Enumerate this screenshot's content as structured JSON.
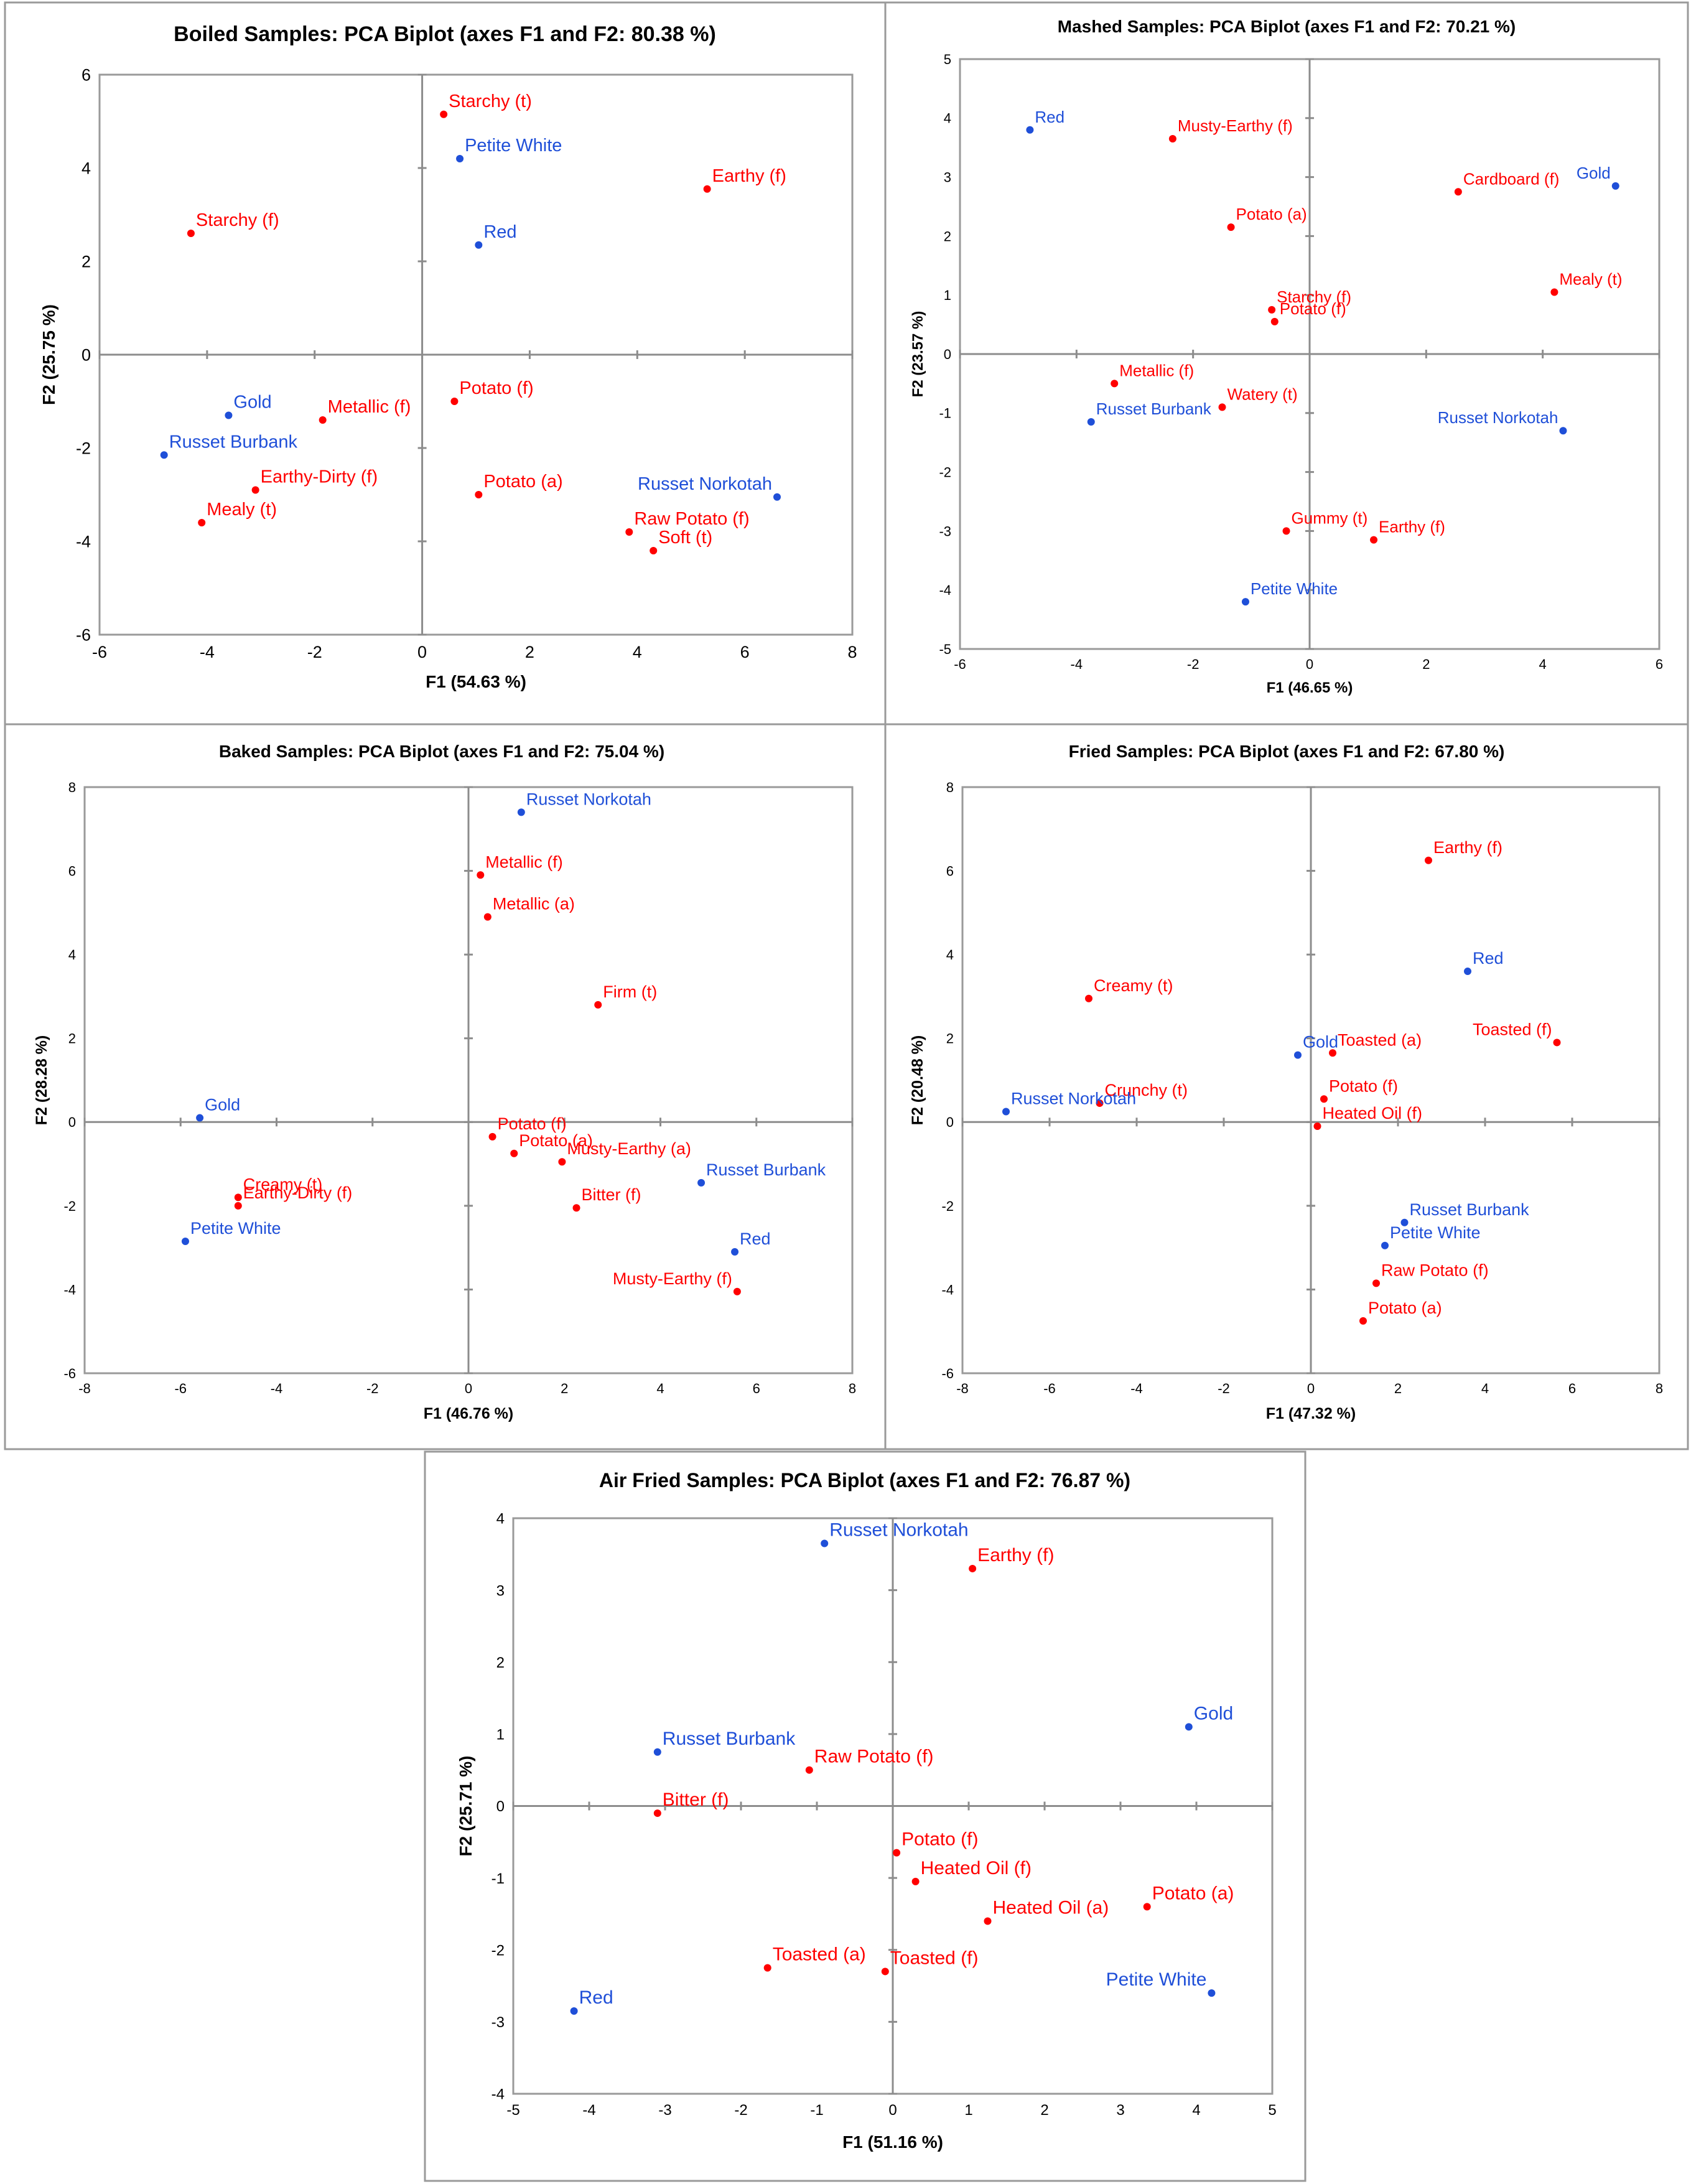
{
  "colors": {
    "attribute": "#ff0000",
    "sample": "#1f4fd8",
    "axis": "#8c8c8c"
  },
  "chart_data": [
    {
      "type": "scatter",
      "title": "Boiled Samples: PCA Biplot (axes F1 and F2: 80.38 %)",
      "xlabel": "F1 (54.63 %)",
      "ylabel": "F2 (25.75 %)",
      "xlim": [
        -6,
        8
      ],
      "ylim": [
        -6,
        6
      ],
      "xticks": [
        -6,
        -4,
        -2,
        0,
        2,
        4,
        6,
        8
      ],
      "yticks": [
        -6,
        -4,
        -2,
        0,
        2,
        4,
        6
      ],
      "series": [
        {
          "name": "attributes",
          "color": "#ff0000",
          "points": [
            {
              "label": "Starchy (t)",
              "x": 0.4,
              "y": 5.15
            },
            {
              "label": "Earthy (f)",
              "x": 5.3,
              "y": 3.55
            },
            {
              "label": "Starchy (f)",
              "x": -4.3,
              "y": 2.6
            },
            {
              "label": "Metallic (f)",
              "x": -1.85,
              "y": -1.4
            },
            {
              "label": "Potato (f)",
              "x": 0.6,
              "y": -1.0
            },
            {
              "label": "Earthy-Dirty (f)",
              "x": -3.1,
              "y": -2.9
            },
            {
              "label": "Mealy (t)",
              "x": -4.1,
              "y": -3.6
            },
            {
              "label": "Potato (a)",
              "x": 1.05,
              "y": -3.0
            },
            {
              "label": "Raw Potato (f)",
              "x": 3.85,
              "y": -3.8
            },
            {
              "label": "Soft (t)",
              "x": 4.3,
              "y": -4.2
            }
          ]
        },
        {
          "name": "samples",
          "color": "#1f4fd8",
          "points": [
            {
              "label": "Petite White",
              "x": 0.7,
              "y": 4.2
            },
            {
              "label": "Red",
              "x": 1.05,
              "y": 2.35
            },
            {
              "label": "Gold",
              "x": -3.6,
              "y": -1.3
            },
            {
              "label": "Russet Burbank",
              "x": -4.8,
              "y": -2.15
            },
            {
              "label": "Russet Norkotah",
              "x": 6.6,
              "y": -3.05
            }
          ]
        }
      ]
    },
    {
      "type": "scatter",
      "title": "Mashed Samples: PCA Biplot (axes F1 and F2: 70.21 %)",
      "xlabel": "F1 (46.65 %)",
      "ylabel": "F2 (23.57 %)",
      "xlim": [
        -6,
        6
      ],
      "ylim": [
        -5,
        5
      ],
      "xticks": [
        -6,
        -4,
        -2,
        0,
        2,
        4,
        6
      ],
      "yticks": [
        -5,
        -4,
        -3,
        -2,
        -1,
        0,
        1,
        2,
        3,
        4,
        5
      ],
      "series": [
        {
          "name": "attributes",
          "color": "#ff0000",
          "points": [
            {
              "label": "Musty-Earthy (f)",
              "x": -2.35,
              "y": 3.65
            },
            {
              "label": "Cardboard (f)",
              "x": 2.55,
              "y": 2.75
            },
            {
              "label": "Potato (a)",
              "x": -1.35,
              "y": 2.15
            },
            {
              "label": "Mealy (t)",
              "x": 4.2,
              "y": 1.05
            },
            {
              "label": "Starchy (f)",
              "x": -0.65,
              "y": 0.75
            },
            {
              "label": "Potato (f)",
              "x": -0.6,
              "y": 0.55
            },
            {
              "label": "Metallic (f)",
              "x": -3.35,
              "y": -0.5
            },
            {
              "label": "Watery (t)",
              "x": -1.5,
              "y": -0.9
            },
            {
              "label": "Gummy (t)",
              "x": -0.4,
              "y": -3.0
            },
            {
              "label": "Earthy (f)",
              "x": 1.1,
              "y": -3.15
            }
          ]
        },
        {
          "name": "samples",
          "color": "#1f4fd8",
          "points": [
            {
              "label": "Red",
              "x": -4.8,
              "y": 3.8
            },
            {
              "label": "Gold",
              "x": 5.25,
              "y": 2.85
            },
            {
              "label": "Russet Burbank",
              "x": -3.75,
              "y": -1.15
            },
            {
              "label": "Russet Norkotah",
              "x": 4.35,
              "y": -1.3
            },
            {
              "label": "Petite White",
              "x": -1.1,
              "y": -4.2
            }
          ]
        }
      ]
    },
    {
      "type": "scatter",
      "title": "Baked Samples: PCA Biplot (axes F1 and F2: 75.04 %)",
      "xlabel": "F1 (46.76 %)",
      "ylabel": "F2 (28.28 %)",
      "xlim": [
        -8,
        8
      ],
      "ylim": [
        -6,
        8
      ],
      "xticks": [
        -8,
        -6,
        -4,
        -2,
        0,
        2,
        4,
        6,
        8
      ],
      "yticks": [
        -6,
        -4,
        -2,
        0,
        2,
        4,
        6,
        8
      ],
      "series": [
        {
          "name": "attributes",
          "color": "#ff0000",
          "points": [
            {
              "label": "Metallic (f)",
              "x": 0.25,
              "y": 5.9
            },
            {
              "label": "Metallic (a)",
              "x": 0.4,
              "y": 4.9
            },
            {
              "label": "Firm (t)",
              "x": 2.7,
              "y": 2.8
            },
            {
              "label": "Potato (f)",
              "x": 0.5,
              "y": -0.35
            },
            {
              "label": "Potato (a)",
              "x": 0.95,
              "y": -0.75
            },
            {
              "label": "Musty-Earthy (a)",
              "x": 1.95,
              "y": -0.95
            },
            {
              "label": "Bitter (f)",
              "x": 2.25,
              "y": -2.05
            },
            {
              "label": "Creamy (t)",
              "x": -4.8,
              "y": -1.8
            },
            {
              "label": "Earthy-Dirty (f)",
              "x": -4.8,
              "y": -2.0
            },
            {
              "label": "Musty-Earthy (f)",
              "x": 5.6,
              "y": -4.05
            }
          ]
        },
        {
          "name": "samples",
          "color": "#1f4fd8",
          "points": [
            {
              "label": "Russet Norkotah",
              "x": 1.1,
              "y": 7.4
            },
            {
              "label": "Gold",
              "x": -5.6,
              "y": 0.1
            },
            {
              "label": "Russet Burbank",
              "x": 4.85,
              "y": -1.45
            },
            {
              "label": "Red",
              "x": 5.55,
              "y": -3.1
            },
            {
              "label": "Petite White",
              "x": -5.9,
              "y": -2.85
            }
          ]
        }
      ]
    },
    {
      "type": "scatter",
      "title": "Fried Samples: PCA Biplot (axes F1 and F2: 67.80 %)",
      "xlabel": "F1 (47.32 %)",
      "ylabel": "F2 (20.48 %)",
      "xlim": [
        -8,
        8
      ],
      "ylim": [
        -6,
        8
      ],
      "xticks": [
        -8,
        -6,
        -4,
        -2,
        0,
        2,
        4,
        6,
        8
      ],
      "yticks": [
        -6,
        -4,
        -2,
        0,
        2,
        4,
        6,
        8
      ],
      "series": [
        {
          "name": "attributes",
          "color": "#ff0000",
          "points": [
            {
              "label": "Earthy (f)",
              "x": 2.7,
              "y": 6.25
            },
            {
              "label": "Creamy (t)",
              "x": -5.1,
              "y": 2.95
            },
            {
              "label": "Toasted (f)",
              "x": 5.65,
              "y": 1.9
            },
            {
              "label": "Toasted (a)",
              "x": 0.5,
              "y": 1.65
            },
            {
              "label": "Potato (f)",
              "x": 0.3,
              "y": 0.55
            },
            {
              "label": "Crunchy (t)",
              "x": -4.85,
              "y": 0.45
            },
            {
              "label": "Heated Oil (f)",
              "x": 0.15,
              "y": -0.1
            },
            {
              "label": "Raw Potato (f)",
              "x": 1.5,
              "y": -3.85
            },
            {
              "label": "Potato (a)",
              "x": 1.2,
              "y": -4.75
            }
          ]
        },
        {
          "name": "samples",
          "color": "#1f4fd8",
          "points": [
            {
              "label": "Red",
              "x": 3.6,
              "y": 3.6
            },
            {
              "label": "Gold",
              "x": -0.3,
              "y": 1.6
            },
            {
              "label": "Russet Norkotah",
              "x": -7.0,
              "y": 0.25
            },
            {
              "label": "Russet Burbank",
              "x": 2.15,
              "y": -2.4
            },
            {
              "label": "Petite White",
              "x": 1.7,
              "y": -2.95
            }
          ]
        }
      ]
    },
    {
      "type": "scatter",
      "title": "Air Fried Samples: PCA Biplot (axes F1 and F2: 76.87 %)",
      "xlabel": "F1 (51.16 %)",
      "ylabel": "F2 (25.71 %)",
      "xlim": [
        -5,
        5
      ],
      "ylim": [
        -4,
        4
      ],
      "xticks": [
        -5,
        -4,
        -3,
        -2,
        -1,
        0,
        1,
        2,
        3,
        4,
        5
      ],
      "yticks": [
        -4,
        -3,
        -2,
        -1,
        0,
        1,
        2,
        3,
        4
      ],
      "series": [
        {
          "name": "attributes",
          "color": "#ff0000",
          "points": [
            {
              "label": "Earthy (f)",
              "x": 1.05,
              "y": 3.3
            },
            {
              "label": "Raw Potato (f)",
              "x": -1.1,
              "y": 0.5
            },
            {
              "label": "Bitter (f)",
              "x": -3.1,
              "y": -0.1
            },
            {
              "label": "Potato (f)",
              "x": 0.05,
              "y": -0.65
            },
            {
              "label": "Heated Oil (f)",
              "x": 0.3,
              "y": -1.05
            },
            {
              "label": "Potato (a)",
              "x": 3.35,
              "y": -1.4
            },
            {
              "label": "Heated Oil (a)",
              "x": 1.25,
              "y": -1.6
            },
            {
              "label": "Toasted (a)",
              "x": -1.65,
              "y": -2.25
            },
            {
              "label": "Toasted (f)",
              "x": -0.1,
              "y": -2.3
            }
          ]
        },
        {
          "name": "samples",
          "color": "#1f4fd8",
          "points": [
            {
              "label": "Russet Norkotah",
              "x": -0.9,
              "y": 3.65
            },
            {
              "label": "Gold",
              "x": 3.9,
              "y": 1.1
            },
            {
              "label": "Russet Burbank",
              "x": -3.1,
              "y": 0.75
            },
            {
              "label": "Petite White",
              "x": 4.2,
              "y": -2.6
            },
            {
              "label": "Red",
              "x": -4.2,
              "y": -2.85
            }
          ]
        }
      ]
    }
  ]
}
